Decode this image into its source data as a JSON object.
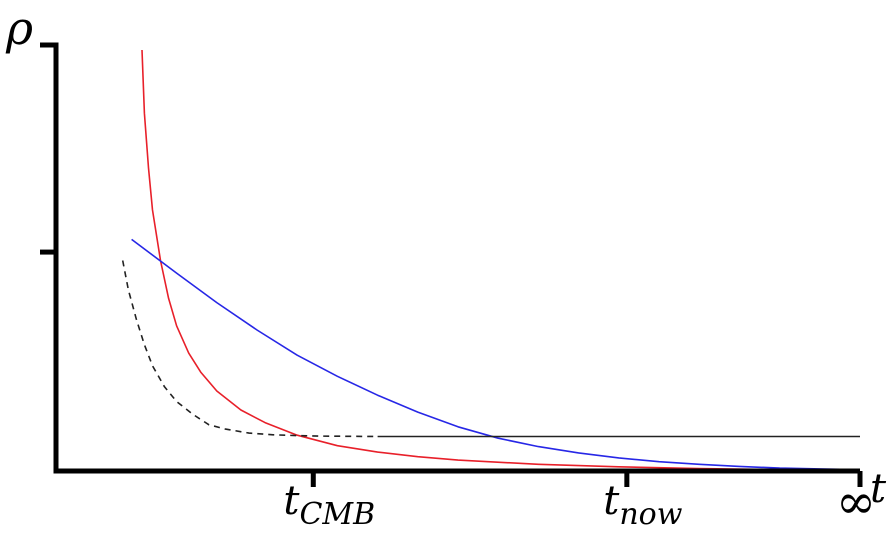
{
  "chart_data": {
    "type": "line",
    "title": "",
    "ylabel": "ρ",
    "xlabel": "t",
    "xlim": [
      0,
      1
    ],
    "ylim": [
      0,
      1
    ],
    "grid": false,
    "legend": "none",
    "x_ticks": [
      {
        "id": "cmb",
        "main": "t",
        "sub": "CMB",
        "x": 0.32
      },
      {
        "id": "now",
        "main": "t",
        "sub": "now",
        "x": 0.71
      },
      {
        "id": "inf",
        "main": "∞",
        "sub": "",
        "x": 1.0
      }
    ],
    "y_ticks": [
      {
        "y": 0.52,
        "label": ""
      }
    ],
    "series": [
      {
        "id": "red",
        "color": "#e8202a",
        "style": "solid",
        "x": [
          0.107,
          0.11,
          0.115,
          0.12,
          0.13,
          0.14,
          0.15,
          0.165,
          0.18,
          0.2,
          0.23,
          0.26,
          0.3,
          0.35,
          0.4,
          0.45,
          0.5,
          0.6,
          0.7,
          0.8,
          0.9,
          1.0
        ],
        "y": [
          1.0,
          0.85,
          0.72,
          0.62,
          0.5,
          0.41,
          0.345,
          0.28,
          0.235,
          0.19,
          0.145,
          0.115,
          0.085,
          0.06,
          0.045,
          0.034,
          0.026,
          0.016,
          0.01,
          0.006,
          0.003,
          0.002
        ]
      },
      {
        "id": "blue",
        "color": "#2727e6",
        "style": "solid",
        "x": [
          0.094,
          0.15,
          0.2,
          0.25,
          0.3,
          0.35,
          0.4,
          0.45,
          0.5,
          0.55,
          0.6,
          0.65,
          0.7,
          0.75,
          0.8,
          0.85,
          0.9,
          0.95,
          1.0
        ],
        "y": [
          0.55,
          0.47,
          0.4,
          0.335,
          0.275,
          0.225,
          0.18,
          0.14,
          0.105,
          0.078,
          0.058,
          0.043,
          0.031,
          0.022,
          0.016,
          0.011,
          0.007,
          0.005,
          0.003
        ]
      },
      {
        "id": "dashed",
        "color": "#222222",
        "style": "dashed",
        "x": [
          0.083,
          0.09,
          0.1,
          0.11,
          0.12,
          0.135,
          0.15,
          0.17,
          0.19,
          0.21,
          0.24,
          0.27,
          0.3,
          0.33,
          0.4
        ],
        "y": [
          0.5,
          0.43,
          0.36,
          0.3,
          0.25,
          0.2,
          0.165,
          0.135,
          0.11,
          0.1,
          0.09,
          0.086,
          0.084,
          0.083,
          0.082
        ]
      },
      {
        "id": "flat",
        "color": "#222222",
        "style": "solid",
        "x": [
          0.4,
          1.0
        ],
        "y": [
          0.082,
          0.082
        ]
      }
    ]
  }
}
